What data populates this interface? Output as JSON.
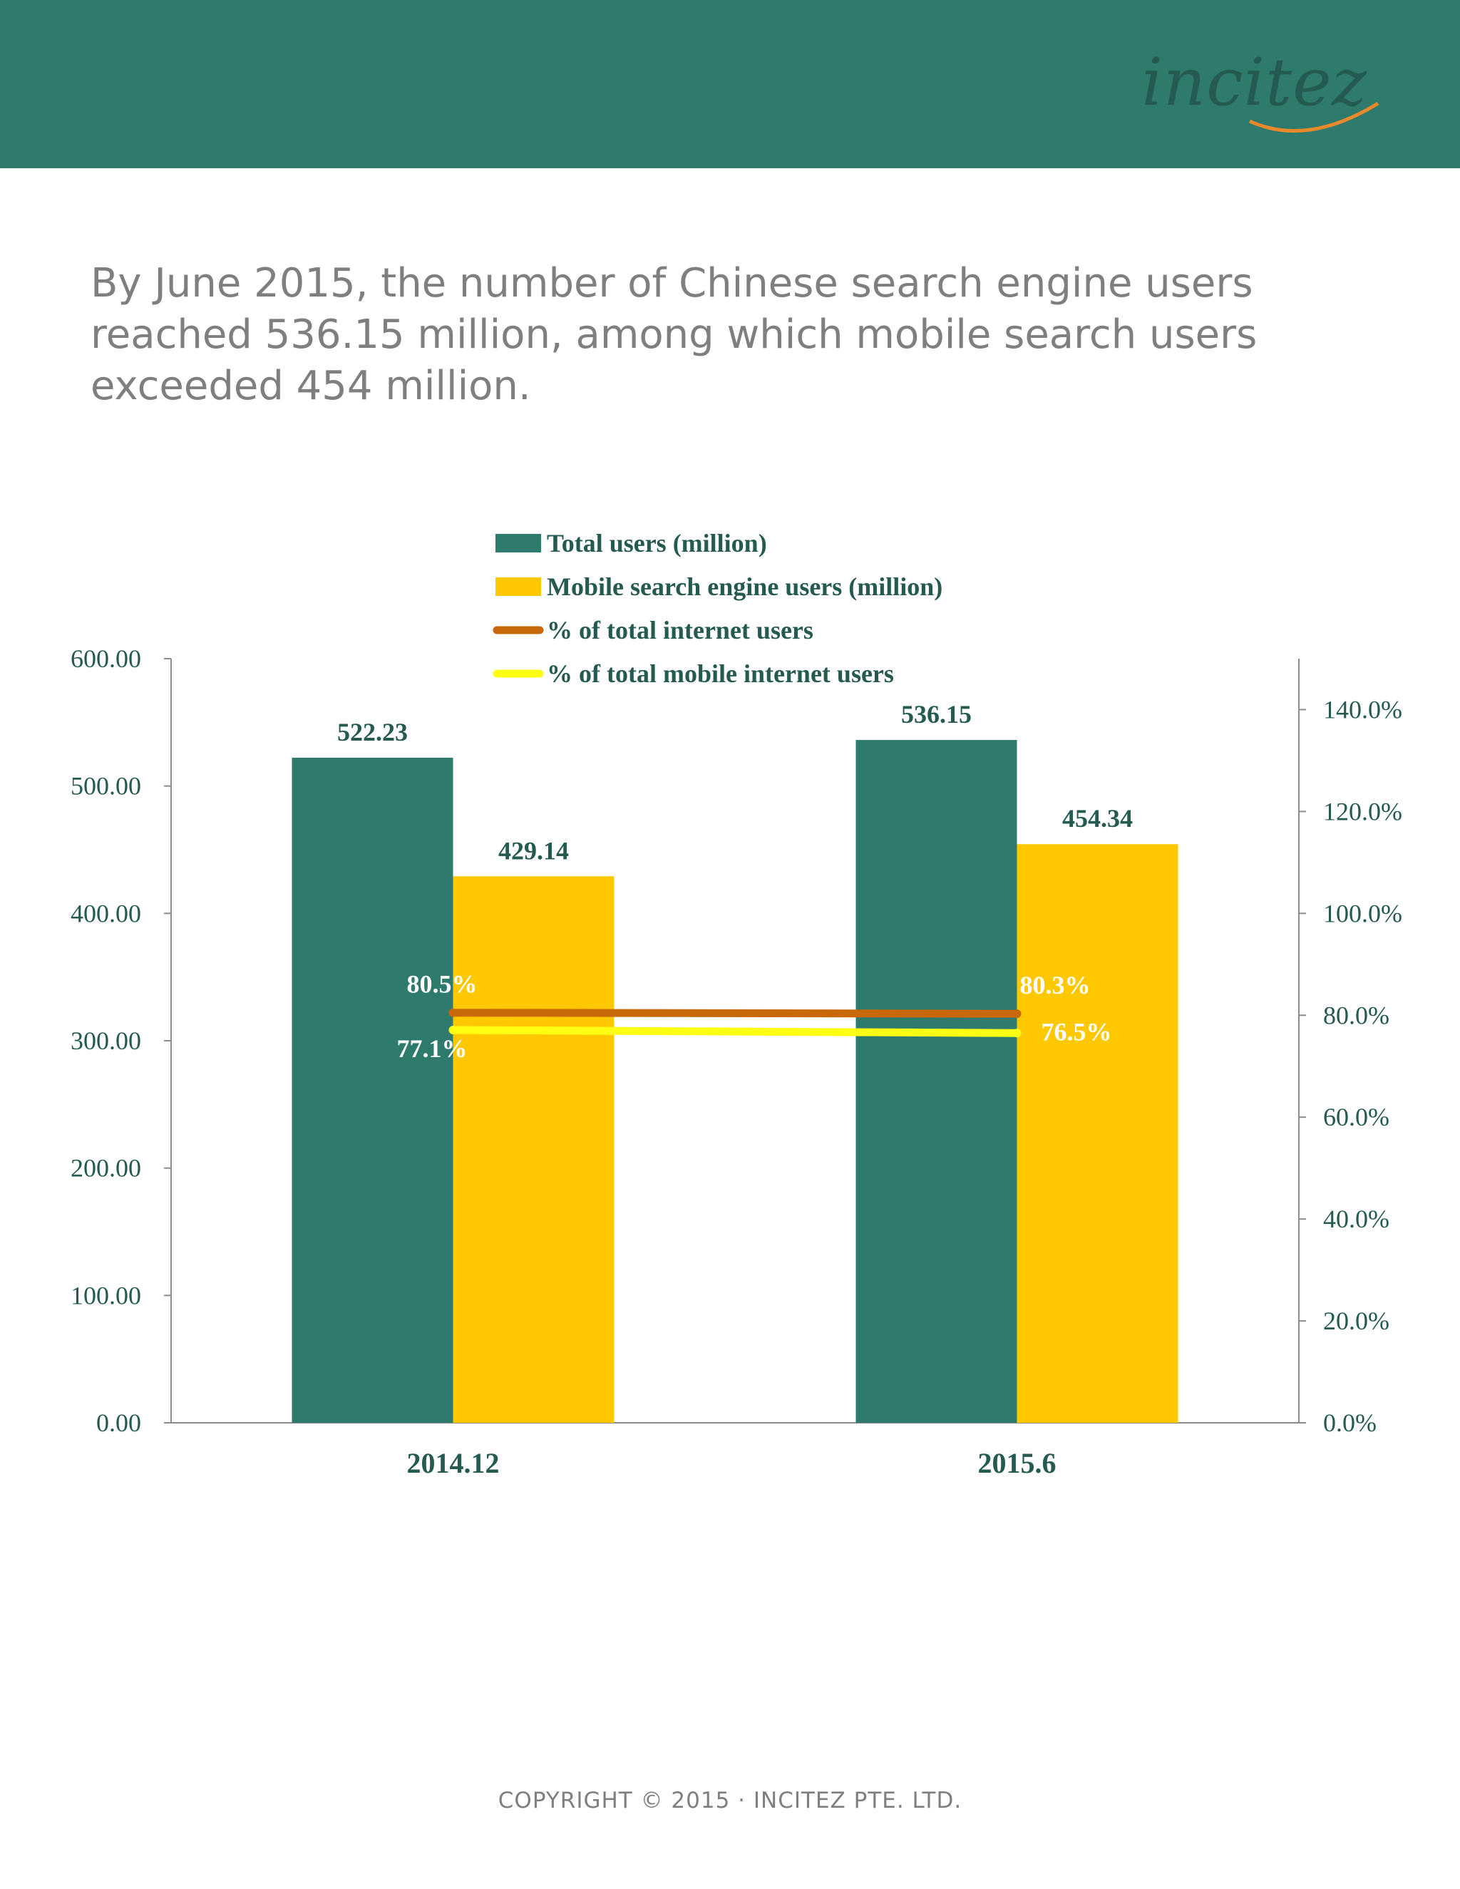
{
  "header": {
    "logo_text": "incitez",
    "band_color": "#2e7a6c"
  },
  "headline": "By June 2015, the number of Chinese search engine users reached 536.15 million, among which mobile search users exceeded 454 million.",
  "footer": "COPYRIGHT © 2015 · INCITEZ PTE. LTD.",
  "chart_data": {
    "type": "bar",
    "categories": [
      "2014.12",
      "2015.6"
    ],
    "series": [
      {
        "name": "Total users (million)",
        "kind": "bar",
        "axis": "left",
        "color": "#2e7a6c",
        "values": [
          522.23,
          536.15
        ],
        "labels": [
          "522.23",
          "536.15"
        ]
      },
      {
        "name": "Mobile search engine users (million)",
        "kind": "bar",
        "axis": "left",
        "color": "#ffc800",
        "values": [
          429.14,
          454.34
        ],
        "labels": [
          "429.14",
          "454.34"
        ]
      },
      {
        "name": "% of total internet users",
        "kind": "line",
        "axis": "right",
        "color": "#c8680a",
        "values": [
          80.5,
          80.3
        ],
        "labels": [
          "80.5%",
          "80.3%"
        ]
      },
      {
        "name": "% of total mobile internet users",
        "kind": "line",
        "axis": "right",
        "color": "#ffff14",
        "values": [
          77.1,
          76.5
        ],
        "labels": [
          "77.1%",
          "76.5%"
        ]
      }
    ],
    "y_left": {
      "min": 0,
      "max": 600,
      "ticks": [
        "0.00",
        "100.00",
        "200.00",
        "300.00",
        "400.00",
        "500.00",
        "600.00"
      ]
    },
    "y_right": {
      "min": 0,
      "max": 150,
      "ticks": [
        "0.0%",
        "20.0%",
        "40.0%",
        "60.0%",
        "80.0%",
        "100.0%",
        "120.0%",
        "140.0%"
      ]
    },
    "grid": false,
    "legend": "top-center"
  }
}
